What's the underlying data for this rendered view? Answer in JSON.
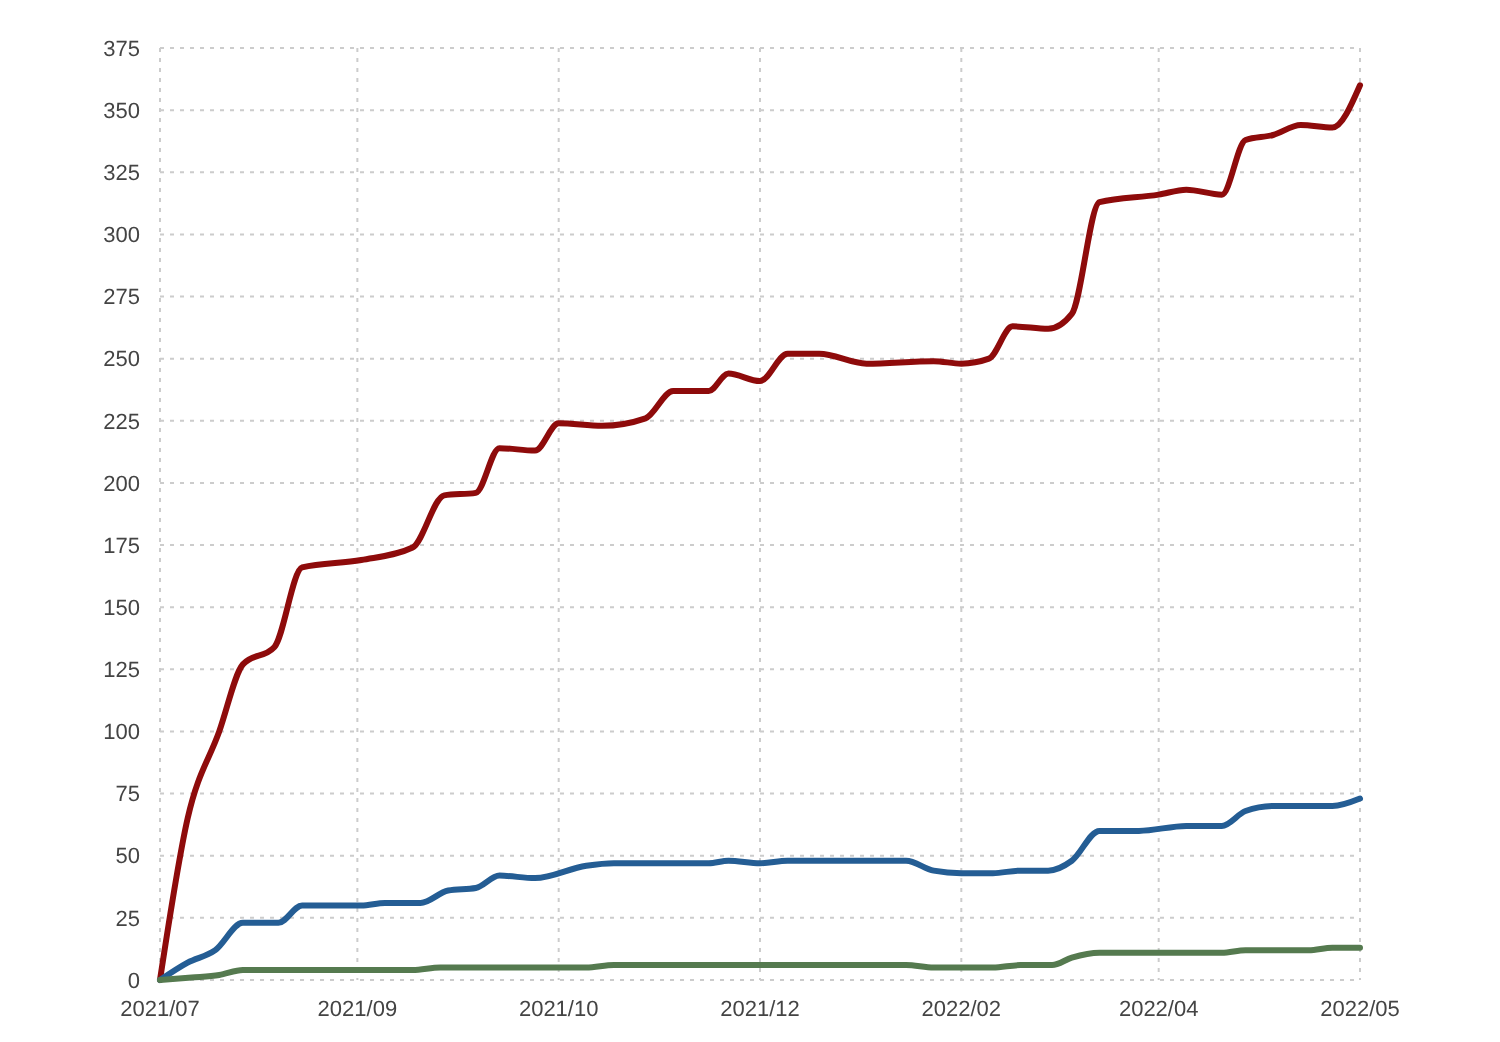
{
  "chart_data": {
    "type": "line",
    "xlim": [
      "2021-07-01",
      "2022-05-01"
    ],
    "xticks": [
      {
        "value": "2021-07-01",
        "label": "2021/07"
      },
      {
        "value": "2021-08-20",
        "label": "2021/09"
      },
      {
        "value": "2021-10-10",
        "label": "2021/10"
      },
      {
        "value": "2021-11-30",
        "label": "2021/12"
      },
      {
        "value": "2022-01-20",
        "label": "2022/02"
      },
      {
        "value": "2022-03-11",
        "label": "2022/04"
      },
      {
        "value": "2022-05-01",
        "label": "2022/05"
      }
    ],
    "ylim": [
      0,
      375
    ],
    "yticks": [
      0,
      25,
      50,
      75,
      100,
      125,
      150,
      175,
      200,
      225,
      250,
      275,
      300,
      325,
      350,
      375
    ],
    "grid": true,
    "marker": "none",
    "line_style": "solid",
    "series": [
      {
        "color": "#8e0b0b",
        "x": [
          "2021-07-01",
          "2021-07-08",
          "2021-07-16",
          "2021-07-22",
          "2021-07-30",
          "2021-08-06",
          "2021-08-21",
          "2021-09-03",
          "2021-09-11",
          "2021-09-19",
          "2021-09-25",
          "2021-10-04",
          "2021-10-10",
          "2021-10-21",
          "2021-11-01",
          "2021-11-08",
          "2021-11-17",
          "2021-11-22",
          "2021-11-30",
          "2021-12-07",
          "2021-12-15",
          "2021-12-27",
          "2022-01-13",
          "2022-01-20",
          "2022-01-27",
          "2022-02-02",
          "2022-02-11",
          "2022-02-17",
          "2022-02-24",
          "2022-03-11",
          "2022-03-18",
          "2022-03-27",
          "2022-04-02",
          "2022-04-09",
          "2022-04-16",
          "2022-04-24",
          "2022-05-01"
        ],
        "values": [
          0,
          65,
          100,
          127,
          134,
          166,
          169,
          174,
          195,
          196,
          214,
          213,
          224,
          223,
          226,
          237,
          237,
          244,
          241,
          252,
          252,
          248,
          249,
          248,
          250,
          263,
          262,
          268,
          313,
          316,
          318,
          316,
          338,
          340,
          344,
          343,
          360
        ]
      },
      {
        "color": "#245d94",
        "x": [
          "2021-07-01",
          "2021-07-08",
          "2021-07-15",
          "2021-07-22",
          "2021-07-31",
          "2021-08-06",
          "2021-08-21",
          "2021-08-27",
          "2021-09-05",
          "2021-09-12",
          "2021-09-19",
          "2021-09-25",
          "2021-10-04",
          "2021-10-17",
          "2021-10-24",
          "2021-11-17",
          "2021-11-22",
          "2021-11-30",
          "2021-12-07",
          "2022-01-06",
          "2022-01-13",
          "2022-01-20",
          "2022-01-28",
          "2022-02-04",
          "2022-02-11",
          "2022-02-17",
          "2022-02-24",
          "2022-03-06",
          "2022-03-18",
          "2022-03-27",
          "2022-04-02",
          "2022-04-09",
          "2022-04-24",
          "2022-05-01"
        ],
        "values": [
          0,
          7,
          12,
          23,
          23,
          30,
          30,
          31,
          31,
          36,
          37,
          42,
          41,
          46,
          47,
          47,
          48,
          47,
          48,
          48,
          44,
          43,
          43,
          44,
          44,
          48,
          60,
          60,
          62,
          62,
          68,
          70,
          70,
          73
        ]
      },
      {
        "color": "#557a4f",
        "x": [
          "2021-07-01",
          "2021-07-09",
          "2021-07-16",
          "2021-07-22",
          "2021-09-03",
          "2021-09-10",
          "2021-10-17",
          "2021-10-24",
          "2021-11-30",
          "2022-01-06",
          "2022-01-13",
          "2022-01-28",
          "2022-02-04",
          "2022-02-12",
          "2022-02-17",
          "2022-02-24",
          "2022-03-27",
          "2022-04-02",
          "2022-04-18",
          "2022-04-24",
          "2022-05-01"
        ],
        "values": [
          0,
          1,
          2,
          4,
          4,
          5,
          5,
          6,
          6,
          6,
          5,
          5,
          6,
          6,
          9,
          11,
          11,
          12,
          12,
          13,
          13
        ]
      }
    ]
  }
}
